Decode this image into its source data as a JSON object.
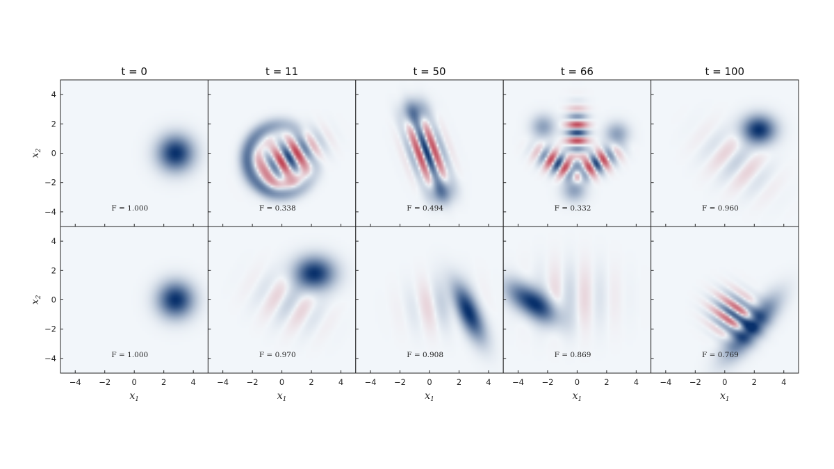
{
  "chart_data": {
    "type": "heatmap",
    "description_rows": [
      "top",
      "bottom"
    ],
    "columns": [
      "t = 0",
      "t = 11",
      "t = 50",
      "t = 66",
      "t = 100"
    ],
    "xlabel": "x1",
    "ylabel": "x2",
    "xlim": [
      -5,
      5
    ],
    "ylim": [
      -5,
      5
    ],
    "xticks": [
      -4,
      -2,
      0,
      2,
      4
    ],
    "yticks": [
      -4,
      -2,
      0,
      2,
      4
    ],
    "colormap": {
      "negative": "#b2182b",
      "zero": "#f2f6fa",
      "positive": "#08306b"
    },
    "fidelity": [
      [
        "F = 1.000",
        "F = 0.338",
        "F = 0.494",
        "F = 0.332",
        "F = 0.960"
      ],
      [
        "F = 1.000",
        "F = 0.970",
        "F = 0.908",
        "F = 0.869",
        "F = 0.769"
      ]
    ],
    "features": [
      [
        [
          {
            "kind": "blob",
            "x": 2.8,
            "y": 0.0,
            "sx": 0.75,
            "sy": 0.75,
            "amp": 1.0
          }
        ],
        [
          {
            "kind": "ring",
            "x": 0.0,
            "y": -0.4,
            "r": 2.3,
            "w": 0.35,
            "amp": 0.7
          },
          {
            "kind": "stripe",
            "x": 0.5,
            "y": -0.3,
            "angle": 30,
            "sx": 1.2,
            "sy": 0.7,
            "k": 5.0,
            "amp": 0.9
          }
        ],
        [
          {
            "kind": "blob",
            "x": -1.0,
            "y": 2.8,
            "sx": 0.55,
            "sy": 0.55,
            "amp": 0.55
          },
          {
            "kind": "blob",
            "x": 0.8,
            "y": -2.6,
            "sx": 0.55,
            "sy": 0.55,
            "amp": 0.55
          },
          {
            "kind": "stripe",
            "x": -0.2,
            "y": 0.1,
            "angle": 20,
            "sx": 0.65,
            "sy": 1.3,
            "k": 5.5,
            "amp": 1.0
          }
        ],
        [
          {
            "kind": "blob",
            "x": -2.3,
            "y": 1.8,
            "sx": 0.5,
            "sy": 0.5,
            "amp": 0.35
          },
          {
            "kind": "blob",
            "x": 2.7,
            "y": 1.3,
            "sx": 0.5,
            "sy": 0.5,
            "amp": 0.35
          },
          {
            "kind": "blob",
            "x": -0.2,
            "y": -2.5,
            "sx": 0.5,
            "sy": 0.5,
            "amp": 0.35
          },
          {
            "kind": "stripe",
            "x": 0.0,
            "y": 1.4,
            "angle": 90,
            "sx": 0.9,
            "sy": 0.45,
            "k": 5.5,
            "amp": 0.9
          },
          {
            "kind": "stripe",
            "x": -1.3,
            "y": -0.7,
            "angle": -30,
            "sx": 0.9,
            "sy": 0.45,
            "k": 5.5,
            "amp": 0.9
          },
          {
            "kind": "stripe",
            "x": 1.3,
            "y": -0.7,
            "angle": 30,
            "sx": 0.9,
            "sy": 0.45,
            "k": 5.5,
            "amp": 0.9
          }
        ],
        [
          {
            "kind": "blob",
            "x": 2.3,
            "y": 1.6,
            "sx": 0.7,
            "sy": 0.6,
            "amp": 1.0
          },
          {
            "kind": "stripe",
            "x": 0.8,
            "y": -0.6,
            "angle": -40,
            "sx": 1.6,
            "sy": 1.0,
            "k": 3.0,
            "amp": 0.12
          }
        ]
      ],
      [
        [
          {
            "kind": "blob",
            "x": 2.8,
            "y": 0.0,
            "sx": 0.75,
            "sy": 0.75,
            "amp": 1.0
          }
        ],
        [
          {
            "kind": "blob",
            "x": 2.2,
            "y": 1.8,
            "sx": 0.85,
            "sy": 0.7,
            "amp": 1.0
          },
          {
            "kind": "stripe",
            "x": 0.5,
            "y": -0.2,
            "angle": -30,
            "sx": 1.5,
            "sy": 1.0,
            "k": 3.0,
            "amp": 0.12
          }
        ],
        [
          {
            "kind": "ellipse",
            "x": 2.6,
            "y": -0.8,
            "angle": -65,
            "sx": 1.3,
            "sy": 0.45,
            "amp": 1.0
          },
          {
            "kind": "stripe",
            "x": 0.8,
            "y": -0.3,
            "angle": 10,
            "sx": 1.4,
            "sy": 1.1,
            "k": 3.0,
            "amp": 0.12
          }
        ],
        [
          {
            "kind": "ellipse",
            "x": -3.0,
            "y": -0.2,
            "angle": -35,
            "sx": 1.2,
            "sy": 0.55,
            "amp": 1.0
          },
          {
            "kind": "stripe",
            "x": -0.5,
            "y": 0.2,
            "angle": 0,
            "sx": 1.8,
            "sy": 1.4,
            "k": 3.0,
            "amp": 0.1
          }
        ],
        [
          {
            "kind": "ellipse",
            "x": 1.8,
            "y": -1.9,
            "angle": 50,
            "sx": 1.5,
            "sy": 0.5,
            "amp": 1.0
          },
          {
            "kind": "stripe",
            "x": 0.6,
            "y": -1.0,
            "angle": 55,
            "sx": 0.8,
            "sy": 0.9,
            "k": 6.0,
            "amp": 0.7
          }
        ]
      ]
    ]
  }
}
